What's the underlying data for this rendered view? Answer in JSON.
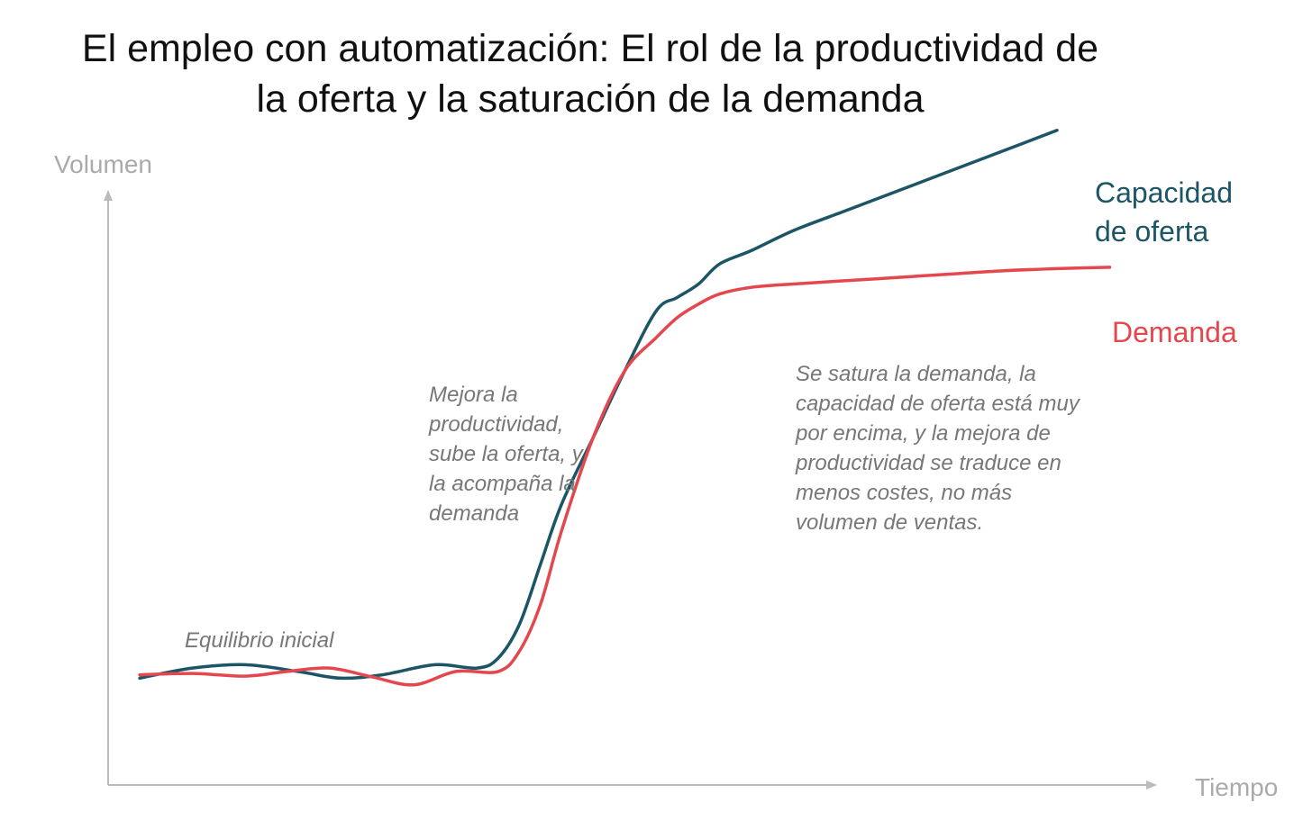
{
  "title": {
    "line1": "El empleo con automatización: El rol de la productividad de",
    "line2": "la oferta y la saturación de la demanda"
  },
  "chart_data": {
    "type": "line",
    "ylabel": "Volumen",
    "xlabel": "Tiempo",
    "x_ticks": false,
    "y_ticks": false,
    "grid": false,
    "xlim": [
      0,
      100
    ],
    "ylim": [
      0,
      100
    ],
    "series": [
      {
        "name": "Capacidad de oferta",
        "color": "#1b5566",
        "label_lines": [
          "Capacidad",
          "de oferta"
        ],
        "x": [
          3,
          8,
          13,
          18,
          22,
          26,
          31,
          35,
          37,
          39,
          41,
          43,
          46,
          49,
          52,
          54,
          56,
          58,
          61,
          65,
          70,
          75,
          80,
          85,
          90
        ],
        "y": [
          16,
          17.5,
          18,
          17,
          16,
          16.5,
          18,
          17.5,
          19,
          24,
          33,
          42,
          52,
          62,
          71,
          73,
          75,
          78,
          80,
          83,
          86,
          89,
          92,
          95,
          98
        ]
      },
      {
        "name": "Demanda",
        "color": "#e5474f",
        "label_lines": [
          "Demanda"
        ],
        "x": [
          3,
          8,
          13,
          17,
          21,
          25,
          29,
          33,
          37,
          39,
          41,
          43,
          46,
          49,
          52,
          54,
          56,
          58,
          61,
          65,
          70,
          75,
          80,
          85,
          90,
          95
        ],
        "y": [
          16.5,
          16.7,
          16.3,
          17,
          17.5,
          16.2,
          15,
          17,
          17,
          20,
          27,
          38,
          52,
          62,
          67,
          70,
          72,
          73.5,
          74.5,
          75,
          75.5,
          76,
          76.5,
          77,
          77.3,
          77.5
        ]
      }
    ],
    "annotations": [
      {
        "id": "equilibrio",
        "lines": [
          "Equilibrio inicial"
        ]
      },
      {
        "id": "mejora",
        "lines": [
          "Mejora la",
          "productividad,",
          "sube la oferta, y",
          "la acompaña la",
          "demanda"
        ]
      },
      {
        "id": "saturacion",
        "lines": [
          "Se satura la demanda, la",
          "capacidad de oferta está muy",
          "por encima, y la mejora de",
          "productividad se traduce en",
          "menos costes, no más",
          "volumen de ventas."
        ]
      }
    ],
    "colors": {
      "axis": "#bbbbbb",
      "axis_text": "#aaaaaa",
      "note_text": "#777777"
    }
  }
}
